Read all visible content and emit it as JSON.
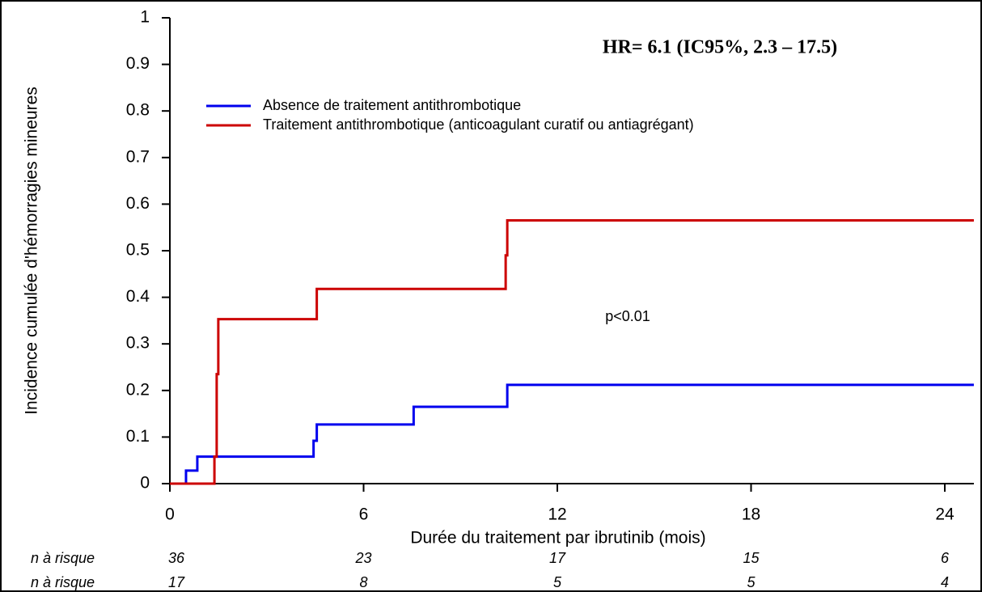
{
  "chart_data": {
    "type": "step",
    "y_label": "Incidence cumulée d'hémorragies mineures",
    "x_label": "Durée du traitement par ibrutinib (mois)",
    "annotations": [
      "HR= 6.1 (IC95%, 2.3 – 17.5)",
      "p<0.01"
    ],
    "xlim": [
      0,
      24.9
    ],
    "xticks": [
      0,
      6,
      12,
      18,
      24
    ],
    "ylim": [
      0,
      1
    ],
    "yticks": [
      0,
      0.1,
      0.2,
      0.3,
      0.4,
      0.5,
      0.6,
      0.7,
      0.8,
      0.9,
      1
    ],
    "legend": "top-left",
    "series": [
      {
        "name": "Absence de traitement antithrombotique",
        "color": "#0000ee",
        "x": [
          0,
          0.5,
          0.85,
          4.45,
          4.55,
          7.55,
          10.45
        ],
        "values": [
          0,
          0.028,
          0.058,
          0.092,
          0.127,
          0.165,
          0.212
        ]
      },
      {
        "name": "Traitement antithrombotique (anticoagulant curatif ou antiagrégant)",
        "color": "#cc0000",
        "x": [
          0,
          1.38,
          1.45,
          1.5,
          4.55,
          10.4,
          10.45
        ],
        "values": [
          0,
          0.058,
          0.235,
          0.353,
          0.418,
          0.49,
          0.565
        ]
      }
    ],
    "risk_table": [
      {
        "label": "n à risque",
        "color": "#0000ee",
        "values": [
          36,
          23,
          17,
          15,
          6
        ]
      },
      {
        "label": "n à risque",
        "color": "#cc0000",
        "values": [
          17,
          8,
          5,
          5,
          4
        ]
      }
    ]
  }
}
